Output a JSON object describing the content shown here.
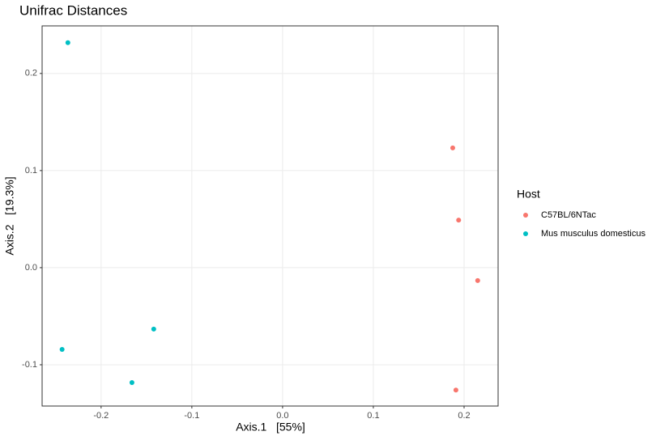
{
  "chart_data": {
    "type": "scatter",
    "title": "Unifrac Distances",
    "x_label": "Axis.1   [55%]",
    "y_label": "Axis.2   [19.3%]",
    "legend_title": "Host",
    "legend_position": "right",
    "grid": true,
    "xlim": [
      -0.265,
      0.2375
    ],
    "ylim": [
      -0.1425,
      0.249
    ],
    "xticks": [
      -0.2,
      -0.1,
      {
        "value": 0,
        "label": "0.0"
      },
      0.1,
      0.2
    ],
    "yticks": [
      -0.1,
      {
        "value": 0,
        "label": "0.0"
      },
      0.1,
      0.2
    ],
    "series": [
      {
        "name": "C57BL/6NTac",
        "color": "#f8766d",
        "x": [
          0.1875,
          0.194,
          0.215,
          0.191
        ],
        "values": [
          0.1233,
          0.049,
          -0.0133,
          -0.126
        ]
      },
      {
        "name": "Mus musculus domesticus",
        "color": "#00bfc4",
        "x": [
          -0.2366,
          -0.142,
          -0.243,
          -0.166
        ],
        "values": [
          0.2317,
          -0.0633,
          -0.0842,
          -0.1183
        ]
      }
    ]
  }
}
